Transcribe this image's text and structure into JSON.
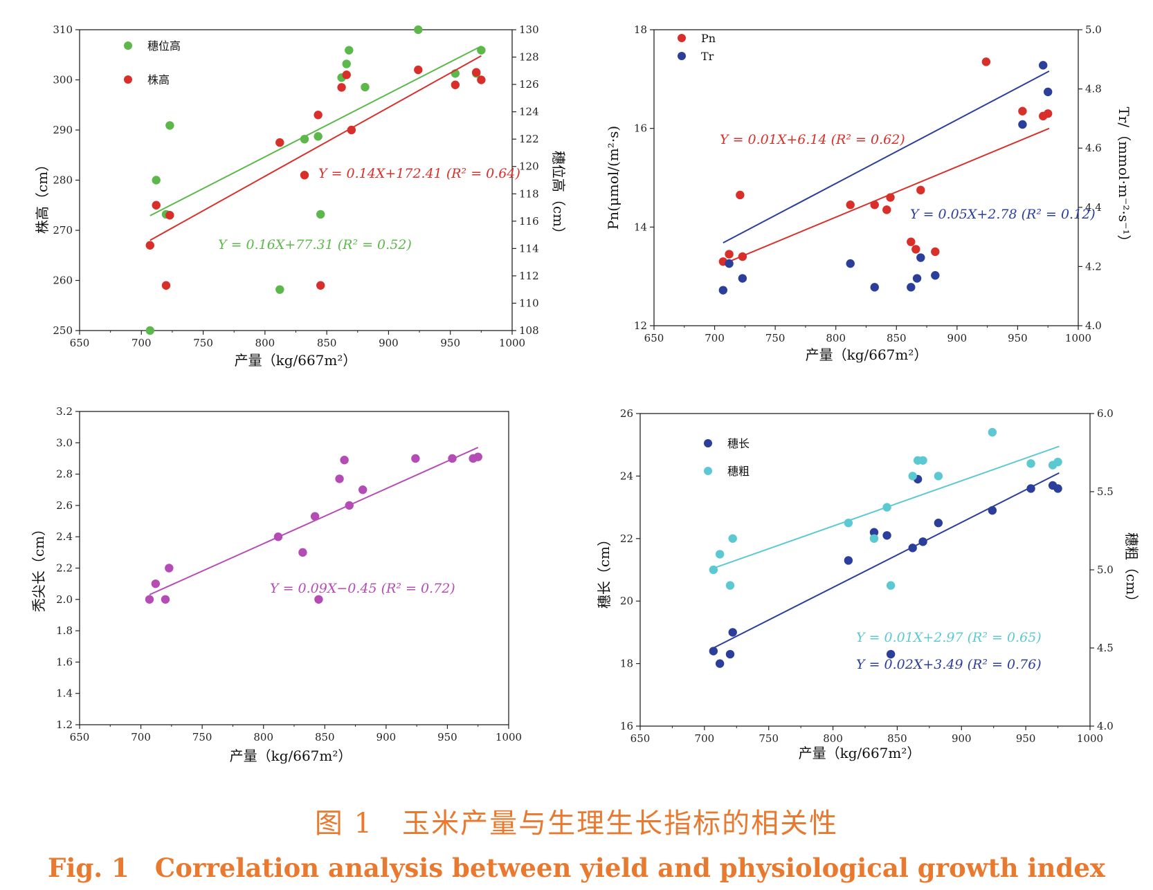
{
  "caption": {
    "zh": "图 1　玉米产量与生理生长指标的相关性",
    "en": "Fig. 1　Correlation analysis between yield and physiological growth index"
  },
  "chart_data": [
    {
      "id": "a",
      "type": "scatter",
      "xlabel": "产量（kg/667m²）",
      "ylabel": "株高（cm）",
      "y2label": "穗位高（cm）",
      "xlim": [
        650,
        1000
      ],
      "ylim": [
        250,
        310
      ],
      "y2lim": [
        108,
        130
      ],
      "xticks": [
        650,
        700,
        750,
        800,
        850,
        900,
        950,
        1000
      ],
      "yticks": [
        250,
        260,
        270,
        280,
        290,
        300,
        310
      ],
      "y2ticks": [
        108,
        110,
        112,
        114,
        116,
        118,
        120,
        122,
        124,
        126,
        128,
        130
      ],
      "legend_position": "top-left",
      "series": [
        {
          "name": "穗位高",
          "axis": "right",
          "color": "#5cb84a",
          "x": [
            707,
            712,
            720,
            723,
            812,
            832,
            843,
            845,
            862,
            866,
            868,
            881,
            924,
            954,
            971,
            975
          ],
          "y": [
            108,
            119,
            116.5,
            123,
            111,
            122,
            122.2,
            116.5,
            126.5,
            127.5,
            128.5,
            125.8,
            130,
            126.8,
            126.8,
            128.5
          ],
          "fit": {
            "equation": "Y = 0.16X+77.31 (R² = 0.52)",
            "x": [
              707,
              975
            ],
            "y": [
              116.4,
              128.8
            ]
          }
        },
        {
          "name": "株高",
          "axis": "left",
          "color": "#d92f2a",
          "x": [
            707,
            712,
            720,
            723,
            812,
            832,
            843,
            845,
            862,
            866,
            870,
            924,
            954,
            971,
            975
          ],
          "y": [
            267,
            275,
            259,
            273,
            287.5,
            281,
            293,
            259,
            298.5,
            301,
            290,
            302,
            299,
            301.5,
            300
          ],
          "fit": {
            "equation": "Y = 0.14X+172.41 (R² = 0.64)",
            "x": [
              707,
              975
            ],
            "y": [
              268,
              304.8
            ]
          }
        }
      ]
    },
    {
      "id": "b",
      "type": "scatter",
      "xlabel": "产量（kg/667m²）",
      "ylabel": "Pn(μmol/(m²·s)",
      "y2label": "Tr/（mmol·m⁻²·s⁻¹）",
      "xlim": [
        650,
        1000
      ],
      "ylim": [
        12,
        18
      ],
      "y2lim": [
        4.0,
        5.0
      ],
      "xticks": [
        650,
        700,
        750,
        800,
        850,
        900,
        950,
        1000
      ],
      "yticks": [
        12,
        14,
        16,
        18
      ],
      "y2ticks": [
        "4.0",
        "4.2",
        "4.4",
        "4.6",
        "4.8",
        "5.0"
      ],
      "legend_position": "top-left",
      "series": [
        {
          "name": "Pn",
          "axis": "left",
          "color": "#d92f2a",
          "x": [
            707,
            712,
            721,
            723,
            812,
            832,
            842,
            845,
            862,
            866,
            870,
            882,
            924,
            954,
            971,
            975
          ],
          "y": [
            13.3,
            13.45,
            14.65,
            13.4,
            14.45,
            14.45,
            14.35,
            14.6,
            13.7,
            13.55,
            14.75,
            13.5,
            17.35,
            16.35,
            16.25,
            16.3
          ],
          "fit": {
            "equation": "Y = 0.01X+6.14 (R² = 0.62)",
            "x": [
              707,
              976
            ],
            "y": [
              13.25,
              16.0
            ]
          }
        },
        {
          "name": "Tr",
          "axis": "right",
          "color": "#2b3e9a",
          "x": [
            707,
            712,
            723,
            812,
            832,
            862,
            867,
            870,
            882,
            954,
            971,
            975
          ],
          "y": [
            4.12,
            4.21,
            4.16,
            4.21,
            4.13,
            4.13,
            4.16,
            4.23,
            4.17,
            4.68,
            4.88,
            4.79
          ],
          "fit": {
            "equation": "Y = 0.05X+2.78 (R² = 0.12)",
            "x": [
              707,
              976
            ],
            "y": [
              4.28,
              4.86
            ]
          }
        }
      ]
    },
    {
      "id": "c",
      "type": "scatter",
      "xlabel": "产量（kg/667m²）",
      "ylabel": "秃尖长（cm）",
      "xlim": [
        650,
        1000
      ],
      "ylim": [
        1.2,
        3.2
      ],
      "xticks": [
        650,
        700,
        750,
        800,
        850,
        900,
        950,
        1000
      ],
      "yticks": [
        "1.2",
        "1.4",
        "1.6",
        "1.8",
        "2.0",
        "2.2",
        "2.4",
        "2.6",
        "2.8",
        "3.0",
        "3.2"
      ],
      "series": [
        {
          "name": "",
          "axis": "left",
          "color": "#b54bb5",
          "x": [
            707,
            712,
            720,
            723,
            812,
            832,
            842,
            845,
            862,
            866,
            870,
            881,
            924,
            954,
            971,
            975
          ],
          "y": [
            2.0,
            2.1,
            2.0,
            2.2,
            2.4,
            2.3,
            2.53,
            2.0,
            2.77,
            2.89,
            2.6,
            2.7,
            2.9,
            2.9,
            2.9,
            2.91
          ],
          "fit": {
            "equation": "Y = 0.09X−0.45 (R² = 0.72)",
            "x": [
              707,
              975
            ],
            "y": [
              2.03,
              2.97
            ]
          }
        }
      ]
    },
    {
      "id": "d",
      "type": "scatter",
      "xlabel": "产量（kg/667m²）",
      "ylabel": "穗长（cm）",
      "y2label": "穗粗（cm）",
      "xlim": [
        650,
        1000
      ],
      "ylim": [
        16,
        26
      ],
      "y2lim": [
        4.0,
        6.0
      ],
      "xticks": [
        650,
        700,
        750,
        800,
        850,
        900,
        950,
        1000
      ],
      "yticks": [
        16,
        18,
        20,
        22,
        24,
        26
      ],
      "y2ticks": [
        "4.0",
        "4.5",
        "5.0",
        "5.5",
        "6.0"
      ],
      "legend_position": "top-left",
      "series": [
        {
          "name": "穗长",
          "axis": "left",
          "color": "#2b3e9a",
          "x": [
            707,
            712,
            720,
            722,
            812,
            832,
            842,
            845,
            862,
            866,
            870,
            882,
            924,
            954,
            971,
            975
          ],
          "y": [
            18.4,
            18.0,
            18.3,
            19.0,
            21.3,
            22.2,
            22.1,
            18.3,
            21.7,
            23.9,
            21.9,
            22.5,
            22.9,
            23.6,
            23.7,
            23.6
          ],
          "fit": {
            "equation": "Y = 0.02X+3.49 (R² = 0.76)",
            "x": [
              707,
              976
            ],
            "y": [
              18.5,
              24.1
            ]
          }
        },
        {
          "name": "穗粗",
          "axis": "right",
          "color": "#5cc8d2",
          "x": [
            707,
            712,
            720,
            722,
            812,
            832,
            842,
            845,
            862,
            866,
            870,
            882,
            924,
            954,
            971,
            975
          ],
          "y": [
            5.0,
            5.1,
            4.9,
            5.2,
            5.3,
            5.2,
            5.4,
            4.9,
            5.6,
            5.7,
            5.7,
            5.6,
            5.88,
            5.68,
            5.67,
            5.69
          ],
          "fit": {
            "equation": "Y = 0.01X+2.97 (R² = 0.65)",
            "x": [
              707,
              976
            ],
            "y": [
              5.01,
              5.79
            ]
          }
        }
      ]
    }
  ]
}
